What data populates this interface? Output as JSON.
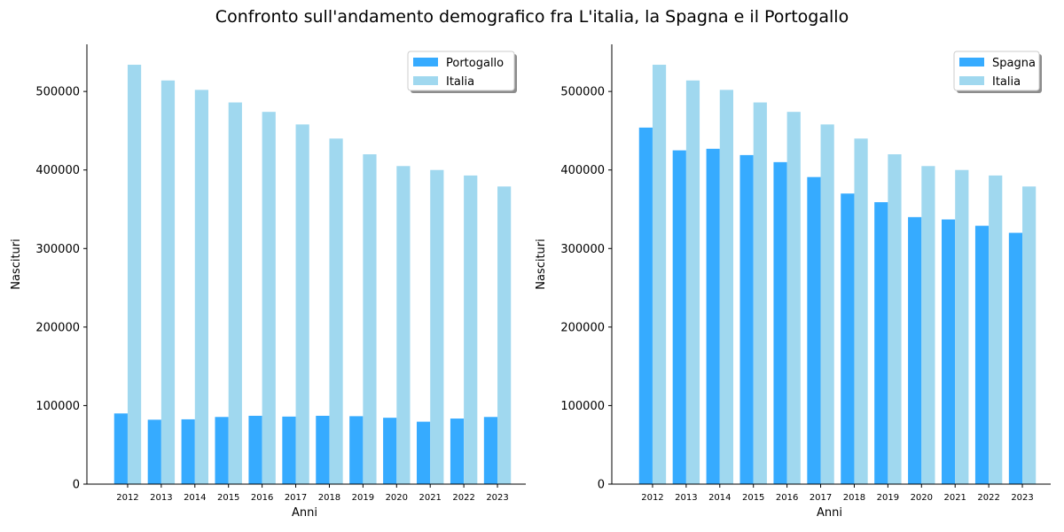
{
  "figure_title": "Confronto sull'andamento demografico fra L'italia, la Spagna e il Portogallo",
  "chart_data": [
    {
      "type": "bar",
      "xlabel": "Anni",
      "ylabel": "Nascituri",
      "categories": [
        "2012",
        "2013",
        "2014",
        "2015",
        "2016",
        "2017",
        "2018",
        "2019",
        "2020",
        "2021",
        "2022",
        "2023"
      ],
      "ylim": [
        0,
        560000
      ],
      "yticks": [
        0,
        100000,
        200000,
        300000,
        400000,
        500000
      ],
      "grid": false,
      "legend_position": "top-right",
      "series": [
        {
          "name": "Portogallo",
          "color": "#36abff",
          "values": [
            90000,
            82000,
            82500,
            85500,
            87000,
            86000,
            87000,
            86500,
            84500,
            79500,
            83500,
            85500
          ]
        },
        {
          "name": "Italia",
          "color": "#a0d8ef",
          "values": [
            534000,
            514000,
            502000,
            486000,
            474000,
            458000,
            440000,
            420000,
            405000,
            400000,
            393000,
            379000
          ]
        }
      ]
    },
    {
      "type": "bar",
      "xlabel": "Anni",
      "ylabel": "Nascituri",
      "categories": [
        "2012",
        "2013",
        "2014",
        "2015",
        "2016",
        "2017",
        "2018",
        "2019",
        "2020",
        "2021",
        "2022",
        "2023"
      ],
      "ylim": [
        0,
        560000
      ],
      "yticks": [
        0,
        100000,
        200000,
        300000,
        400000,
        500000
      ],
      "grid": false,
      "legend_position": "top-right",
      "series": [
        {
          "name": "Spagna",
          "color": "#36abff",
          "values": [
            454000,
            425000,
            427000,
            419000,
            410000,
            391000,
            370000,
            359000,
            340000,
            337000,
            329000,
            320000
          ]
        },
        {
          "name": "Italia",
          "color": "#a0d8ef",
          "values": [
            534000,
            514000,
            502000,
            486000,
            474000,
            458000,
            440000,
            420000,
            405000,
            400000,
            393000,
            379000
          ]
        }
      ]
    }
  ]
}
